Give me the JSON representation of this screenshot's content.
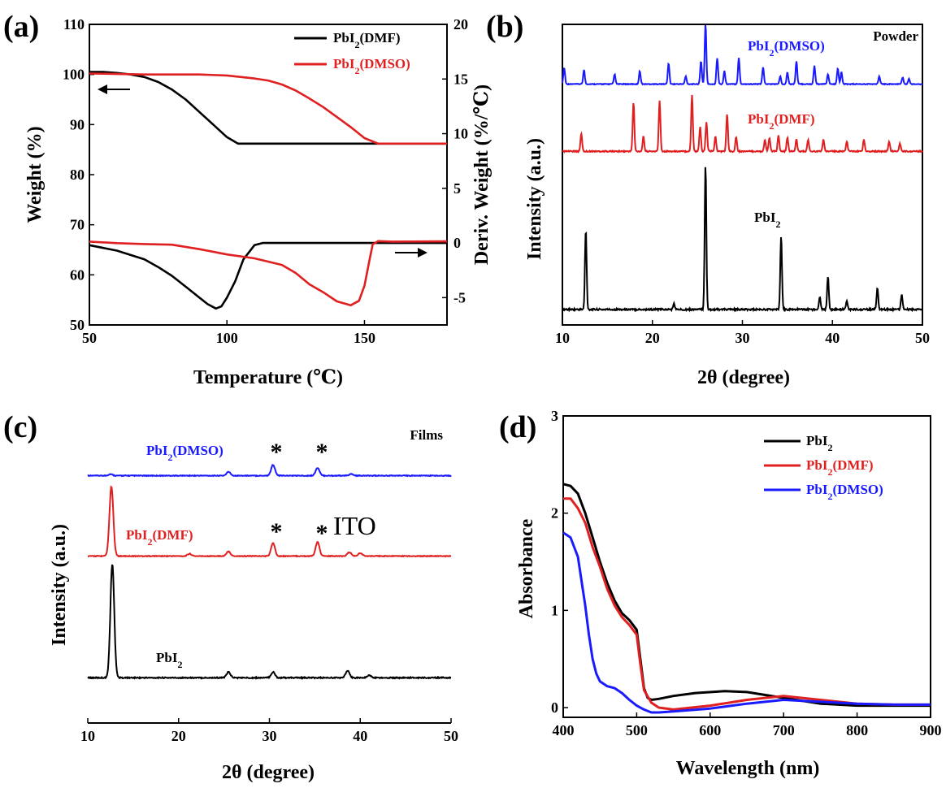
{
  "chart_data": [
    {
      "panel": "(a)",
      "type": "line",
      "xlabel": "Temperature (℃)",
      "ylabel": "Weight (%)",
      "y2label": "Deriv. Weight (%/℃)",
      "xlim": [
        50,
        180
      ],
      "ylim": [
        50,
        110
      ],
      "y2lim": [
        -7.5,
        20
      ],
      "xticks": [
        50,
        100,
        150
      ],
      "yticks": [
        50,
        60,
        70,
        80,
        90,
        100,
        110
      ],
      "y2ticks": [
        -5,
        0,
        5,
        10,
        15,
        20
      ],
      "legend_position": "top-right",
      "series": [
        {
          "name": "PbI2(DMF)",
          "kind": "weight",
          "color": "#000000",
          "x": [
            50,
            55,
            60,
            65,
            70,
            75,
            80,
            85,
            90,
            95,
            100,
            104,
            110,
            130,
            150,
            180
          ],
          "y": [
            100.5,
            100.5,
            100.3,
            100,
            99.5,
            98.5,
            97,
            95,
            92.5,
            90,
            87.5,
            86.2,
            86.2,
            86.2,
            86.2,
            86.2
          ]
        },
        {
          "name": "PbI2(DMSO)",
          "kind": "weight",
          "color": "#e02020",
          "x": [
            50,
            70,
            90,
            100,
            110,
            115,
            120,
            125,
            130,
            135,
            140,
            145,
            150,
            155,
            160,
            180
          ],
          "y": [
            100.2,
            100,
            100,
            99.8,
            99.2,
            98.8,
            98,
            96.8,
            95.2,
            93.5,
            91.5,
            89.5,
            87.3,
            86.2,
            86.2,
            86.2
          ]
        },
        {
          "name": "PbI2(DMF)",
          "kind": "derivative",
          "color": "#000000",
          "x": [
            50,
            60,
            70,
            75,
            80,
            85,
            90,
            93,
            96,
            98,
            100,
            103,
            106,
            110,
            113,
            120,
            150,
            180
          ],
          "y": [
            -0.2,
            -0.7,
            -1.5,
            -2.2,
            -3.0,
            -4.0,
            -5.0,
            -5.6,
            -6.0,
            -5.8,
            -5.0,
            -3.5,
            -1.5,
            -0.2,
            0,
            0,
            0,
            0
          ]
        },
        {
          "name": "PbI2(DMSO)",
          "kind": "derivative",
          "color": "#e02020",
          "x": [
            50,
            60,
            70,
            80,
            90,
            100,
            110,
            120,
            125,
            130,
            135,
            140,
            145,
            148,
            150,
            152,
            153,
            155,
            160,
            180
          ],
          "y": [
            0,
            -0.1,
            -0.2,
            -0.3,
            -0.6,
            -0.9,
            -1.3,
            -2.0,
            -2.7,
            -3.6,
            -4.5,
            -5.3,
            -5.8,
            -5.5,
            -4.0,
            -1.5,
            -0.2,
            0,
            0,
            0
          ]
        }
      ]
    },
    {
      "panel": "(b)",
      "type": "line",
      "xlabel": "2θ (degree)",
      "ylabel": "Intensity (a.u.)",
      "xlim": [
        10,
        50
      ],
      "xticks": [
        10,
        20,
        30,
        40,
        50
      ],
      "corner_label": "Powder",
      "series": [
        {
          "name": "PbI2(DMSO)",
          "color": "#1a1aff",
          "peaks": [
            [
              10.2,
              0.25
            ],
            [
              12.4,
              0.22
            ],
            [
              15.8,
              0.15
            ],
            [
              18.6,
              0.2
            ],
            [
              21.8,
              0.32
            ],
            [
              23.7,
              0.12
            ],
            [
              25.4,
              0.35
            ],
            [
              25.9,
              0.92
            ],
            [
              27.2,
              0.4
            ],
            [
              28.0,
              0.2
            ],
            [
              29.6,
              0.4
            ],
            [
              32.3,
              0.26
            ],
            [
              34.2,
              0.12
            ],
            [
              35.0,
              0.18
            ],
            [
              36.0,
              0.35
            ],
            [
              38.0,
              0.28
            ],
            [
              39.5,
              0.15
            ],
            [
              40.6,
              0.24
            ],
            [
              41.0,
              0.18
            ],
            [
              45.2,
              0.12
            ],
            [
              47.8,
              0.1
            ],
            [
              48.5,
              0.08
            ]
          ]
        },
        {
          "name": "PbI2(DMF)",
          "color": "#e02020",
          "peaks": [
            [
              12.1,
              0.18
            ],
            [
              17.9,
              0.5
            ],
            [
              19.0,
              0.15
            ],
            [
              20.8,
              0.52
            ],
            [
              24.4,
              0.58
            ],
            [
              25.3,
              0.25
            ],
            [
              26.0,
              0.3
            ],
            [
              27.0,
              0.15
            ],
            [
              28.3,
              0.38
            ],
            [
              29.3,
              0.15
            ],
            [
              32.5,
              0.12
            ],
            [
              33.0,
              0.14
            ],
            [
              34.0,
              0.16
            ],
            [
              35.0,
              0.14
            ],
            [
              36.0,
              0.12
            ],
            [
              37.3,
              0.12
            ],
            [
              39.0,
              0.12
            ],
            [
              41.6,
              0.1
            ],
            [
              43.5,
              0.12
            ],
            [
              46.3,
              0.1
            ],
            [
              47.5,
              0.08
            ]
          ]
        },
        {
          "name": "PbI2",
          "color": "#000000",
          "peaks": [
            [
              12.6,
              0.55
            ],
            [
              22.4,
              0.04
            ],
            [
              25.9,
              1.0
            ],
            [
              34.3,
              0.5
            ],
            [
              38.6,
              0.09
            ],
            [
              39.5,
              0.23
            ],
            [
              41.6,
              0.06
            ],
            [
              45.0,
              0.15
            ],
            [
              47.7,
              0.1
            ]
          ]
        }
      ]
    },
    {
      "panel": "(c)",
      "type": "line",
      "xlabel": "2θ (degree)",
      "ylabel": "Intensity (a.u.)",
      "xlim": [
        10,
        50
      ],
      "xticks": [
        10,
        20,
        30,
        40,
        50
      ],
      "corner_label": "Films",
      "markers": [
        "*",
        "*",
        "*",
        "*"
      ],
      "marker_label": "ITO",
      "series": [
        {
          "name": "PbI2(DMSO)",
          "color": "#1a1aff",
          "peaks": [
            [
              12.5,
              0.02
            ],
            [
              25.5,
              0.05
            ],
            [
              30.4,
              0.14
            ],
            [
              35.3,
              0.1
            ],
            [
              39.0,
              0.02
            ]
          ]
        },
        {
          "name": "PbI2(DMF)",
          "color": "#e02020",
          "peaks": [
            [
              12.6,
              0.9
            ],
            [
              21.2,
              0.03
            ],
            [
              25.5,
              0.06
            ],
            [
              30.4,
              0.17
            ],
            [
              35.3,
              0.18
            ],
            [
              38.8,
              0.05
            ],
            [
              40.0,
              0.04
            ]
          ]
        },
        {
          "name": "PbI2",
          "color": "#000000",
          "peaks": [
            [
              12.7,
              1.0
            ],
            [
              25.5,
              0.05
            ],
            [
              30.4,
              0.05
            ],
            [
              38.6,
              0.06
            ],
            [
              41.0,
              0.02
            ]
          ]
        }
      ]
    },
    {
      "panel": "(d)",
      "type": "line",
      "xlabel": "Wavelength (nm)",
      "ylabel": "Absorbance",
      "xlim": [
        400,
        900
      ],
      "ylim": [
        -0.1,
        3
      ],
      "xticks": [
        400,
        500,
        600,
        700,
        800,
        900
      ],
      "yticks": [
        0,
        1,
        2,
        3
      ],
      "legend_position": "top-right",
      "series": [
        {
          "name": "PbI2",
          "color": "#000000",
          "x": [
            400,
            410,
            420,
            430,
            440,
            450,
            460,
            470,
            480,
            490,
            500,
            505,
            510,
            515,
            520,
            530,
            550,
            580,
            620,
            650,
            700,
            750,
            800,
            850,
            900
          ],
          "y": [
            2.3,
            2.28,
            2.2,
            2.0,
            1.75,
            1.5,
            1.28,
            1.1,
            0.97,
            0.9,
            0.8,
            0.5,
            0.2,
            0.1,
            0.08,
            0.09,
            0.12,
            0.15,
            0.17,
            0.16,
            0.1,
            0.04,
            0.02,
            0.02,
            0.02
          ]
        },
        {
          "name": "PbI2(DMF)",
          "color": "#e02020",
          "x": [
            400,
            410,
            420,
            430,
            440,
            450,
            460,
            470,
            480,
            490,
            500,
            505,
            510,
            520,
            530,
            550,
            600,
            650,
            700,
            750,
            800,
            850,
            900
          ],
          "y": [
            2.15,
            2.15,
            2.05,
            1.9,
            1.65,
            1.45,
            1.22,
            1.05,
            0.93,
            0.85,
            0.75,
            0.45,
            0.18,
            0.05,
            0.0,
            -0.02,
            0.02,
            0.08,
            0.12,
            0.08,
            0.04,
            0.03,
            0.03
          ]
        },
        {
          "name": "PbI2(DMSO)",
          "color": "#1a1aff",
          "x": [
            400,
            410,
            420,
            430,
            435,
            440,
            445,
            450,
            460,
            470,
            480,
            490,
            500,
            510,
            520,
            530,
            550,
            600,
            650,
            700,
            750,
            800,
            850,
            900
          ],
          "y": [
            1.8,
            1.75,
            1.55,
            1.05,
            0.75,
            0.5,
            0.35,
            0.27,
            0.22,
            0.2,
            0.15,
            0.08,
            0.02,
            -0.02,
            -0.05,
            -0.05,
            -0.04,
            -0.01,
            0.04,
            0.08,
            0.06,
            0.04,
            0.03,
            0.03
          ]
        }
      ]
    }
  ]
}
